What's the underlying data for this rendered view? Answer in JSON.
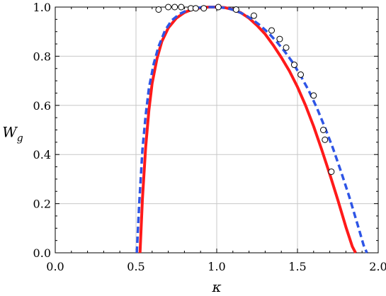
{
  "chart_data": {
    "type": "line",
    "title": "",
    "xlabel": "κ",
    "ylabel": {
      "base": "W",
      "sub": "g"
    },
    "xlim": [
      0.0,
      2.0
    ],
    "ylim": [
      0.0,
      1.0
    ],
    "x_ticks": [
      "0.0",
      "0.5",
      "1.0",
      "1.5",
      "2.0"
    ],
    "y_ticks": [
      "0.0",
      "0.2",
      "0.4",
      "0.6",
      "0.8",
      "1.0"
    ],
    "grid": true,
    "legend": "none",
    "series": [
      {
        "style": "solid",
        "color": "#ff1a1a",
        "x": [
          0.525,
          0.54,
          0.56,
          0.58,
          0.6,
          0.63,
          0.66,
          0.7,
          0.75,
          0.8,
          0.85,
          0.9,
          0.95,
          1.0,
          1.05,
          1.1,
          1.15,
          1.2,
          1.25,
          1.3,
          1.35,
          1.4,
          1.45,
          1.5,
          1.55,
          1.6,
          1.65,
          1.7,
          1.75,
          1.8,
          1.84,
          1.86
        ],
        "y": [
          0.0,
          0.22,
          0.43,
          0.58,
          0.69,
          0.79,
          0.86,
          0.915,
          0.955,
          0.978,
          0.991,
          0.997,
          1.0,
          1.0,
          0.998,
          0.99,
          0.977,
          0.955,
          0.925,
          0.89,
          0.845,
          0.795,
          0.74,
          0.675,
          0.6,
          0.515,
          0.42,
          0.32,
          0.215,
          0.105,
          0.025,
          0.0
        ]
      },
      {
        "style": "dashed",
        "color": "#2e55e6",
        "x": [
          0.505,
          0.52,
          0.54,
          0.56,
          0.58,
          0.61,
          0.64,
          0.68,
          0.72,
          0.77,
          0.82,
          0.87,
          0.92,
          0.97,
          1.02,
          1.07,
          1.12,
          1.17,
          1.22,
          1.27,
          1.32,
          1.37,
          1.42,
          1.47,
          1.52,
          1.57,
          1.62,
          1.67,
          1.72,
          1.77,
          1.82,
          1.87,
          1.91,
          1.93
        ],
        "y": [
          0.0,
          0.2,
          0.42,
          0.56,
          0.67,
          0.77,
          0.84,
          0.905,
          0.945,
          0.972,
          0.988,
          0.996,
          1.0,
          1.0,
          0.999,
          0.995,
          0.985,
          0.97,
          0.95,
          0.925,
          0.895,
          0.86,
          0.82,
          0.775,
          0.72,
          0.66,
          0.59,
          0.51,
          0.425,
          0.33,
          0.23,
          0.12,
          0.03,
          0.0
        ]
      },
      {
        "style": "markers",
        "color": "#000000",
        "x": [
          0.64,
          0.7,
          0.74,
          0.78,
          0.84,
          0.87,
          0.92,
          1.01,
          1.12,
          1.23,
          1.34,
          1.39,
          1.43,
          1.48,
          1.52,
          1.6,
          1.66,
          1.67,
          1.71
        ],
        "y": [
          0.99,
          1.0,
          1.0,
          1.0,
          0.995,
          0.995,
          0.995,
          1.0,
          0.99,
          0.965,
          0.905,
          0.87,
          0.835,
          0.765,
          0.725,
          0.64,
          0.5,
          0.46,
          0.33
        ]
      }
    ]
  }
}
